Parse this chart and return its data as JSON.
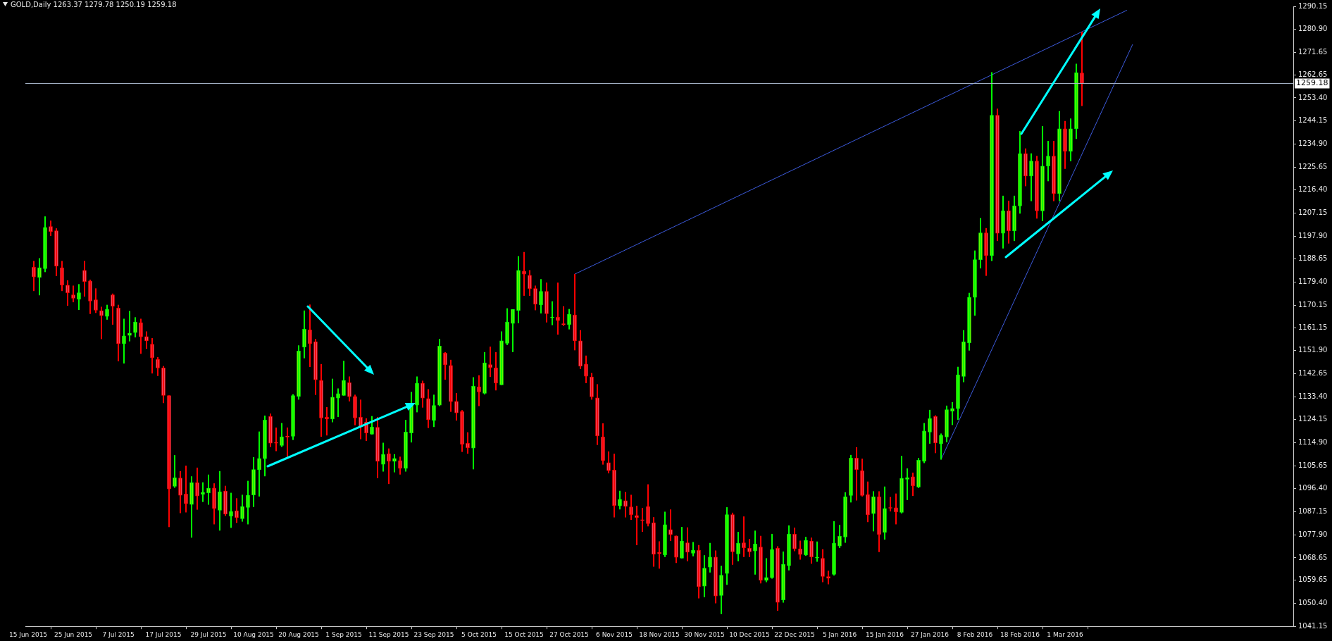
{
  "chart_data": {
    "type": "candlestick",
    "title": "GOLD,Daily 1263.37 1279.78 1250.19 1259.18",
    "categories": [
      "15 Jun 2015",
      null,
      null,
      null,
      null,
      null,
      null,
      null,
      "25 Jun 2015",
      null,
      null,
      null,
      null,
      null,
      null,
      null,
      "7 Jul 2015",
      null,
      null,
      null,
      null,
      null,
      null,
      null,
      "17 Jul 2015",
      null,
      null,
      null,
      null,
      null,
      null,
      null,
      "29 Jul 2015",
      null,
      null,
      null,
      null,
      null,
      null,
      null,
      "10 Aug 2015",
      null,
      null,
      null,
      null,
      null,
      null,
      null,
      "20 Aug 2015",
      null,
      null,
      null,
      null,
      null,
      null,
      null,
      "1 Sep 2015",
      null,
      null,
      null,
      null,
      null,
      null,
      null,
      "11 Sep 2015",
      null,
      null,
      null,
      null,
      null,
      null,
      null,
      "23 Sep 2015",
      null,
      null,
      null,
      null,
      null,
      null,
      null,
      "5 Oct 2015",
      null,
      null,
      null,
      null,
      null,
      null,
      null,
      "15 Oct 2015",
      null,
      null,
      null,
      null,
      null,
      null,
      null,
      "27 Oct 2015",
      null,
      null,
      null,
      null,
      null,
      null,
      null,
      "6 Nov 2015",
      null,
      null,
      null,
      null,
      null,
      null,
      null,
      "18 Nov 2015",
      null,
      null,
      null,
      null,
      null,
      null,
      null,
      "30 Nov 2015",
      null,
      null,
      null,
      null,
      null,
      null,
      null,
      "10 Dec 2015",
      null,
      null,
      null,
      null,
      null,
      null,
      null,
      "22 Dec 2015",
      null,
      null,
      null,
      null,
      null,
      null,
      null,
      "5 Jan 2016",
      null,
      null,
      null,
      null,
      null,
      null,
      null,
      "15 Jan 2016",
      null,
      null,
      null,
      null,
      null,
      null,
      null,
      "27 Jan 2016",
      null,
      null,
      null,
      null,
      null,
      null,
      null,
      "8 Feb 2016",
      null,
      null,
      null,
      null,
      null,
      null,
      null,
      "18 Feb 2016",
      null,
      null,
      null,
      null,
      null,
      null,
      null,
      "1 Mar 2016",
      null,
      null,
      null,
      null,
      null,
      null,
      null,
      null,
      null,
      null,
      null,
      null,
      null,
      null,
      null,
      null,
      null,
      null,
      null,
      null,
      null,
      null,
      null,
      null,
      null,
      null,
      null,
      null,
      null,
      null,
      null,
      null,
      null,
      null,
      null,
      null,
      null,
      null,
      null,
      null
    ],
    "ohlc": [
      null,
      [
        1185.4,
        1187.8,
        1175.9,
        1181.5
      ],
      [
        1181.3,
        1188.9,
        1174.2,
        1185.2
      ],
      [
        1184.8,
        1205.7,
        1183.5,
        1201.4
      ],
      [
        1201.7,
        1204.0,
        1198.0,
        1199.7
      ],
      [
        1200.0,
        1200.9,
        1181.9,
        1185.8
      ],
      [
        1185.2,
        1187.8,
        1175.9,
        1178.2
      ],
      [
        1178.2,
        1180.0,
        1170.0,
        1175.1
      ],
      [
        1174.3,
        1177.9,
        1171.4,
        1172.9
      ],
      [
        1172.5,
        1178.5,
        1168.3,
        1175.1
      ],
      [
        1184.1,
        1187.8,
        1173.7,
        1179.6
      ],
      [
        1179.9,
        1180.3,
        1166.7,
        1171.8
      ],
      [
        1172.3,
        1176.8,
        1167.1,
        1168.1
      ],
      [
        1167.9,
        1169.4,
        1156.6,
        1165.9
      ],
      [
        1165.6,
        1170.2,
        1164.4,
        1168.4
      ],
      [
        1174.3,
        1174.7,
        1162.4,
        1169.7
      ],
      [
        1169.0,
        1170.2,
        1147.7,
        1154.7
      ],
      [
        1154.7,
        1164.6,
        1146.8,
        1157.8
      ],
      [
        1158.0,
        1167.7,
        1155.7,
        1158.9
      ],
      [
        1159.1,
        1165.2,
        1157.3,
        1163.4
      ],
      [
        1163.1,
        1164.6,
        1150.7,
        1157.4
      ],
      [
        1157.5,
        1159.5,
        1152.7,
        1155.8
      ],
      [
        1154.5,
        1156.8,
        1142.8,
        1149.0
      ],
      [
        1148.3,
        1149.2,
        1141.8,
        1144.9
      ],
      [
        1144.9,
        1145.6,
        1130.9,
        1133.9
      ],
      [
        1133.8,
        1133.8,
        1081.1,
        1096.3
      ],
      [
        1097.4,
        1109.8,
        1096.9,
        1100.8
      ],
      [
        1100.7,
        1103.4,
        1086.7,
        1093.8
      ],
      [
        1094.3,
        1105.6,
        1087.0,
        1090.4
      ],
      [
        1090.1,
        1101.3,
        1076.9,
        1098.8
      ],
      [
        1098.8,
        1104.8,
        1088.1,
        1093.5
      ],
      [
        1094.2,
        1098.9,
        1091.2,
        1095.0
      ],
      [
        1094.8,
        1102.0,
        1090.1,
        1096.6
      ],
      [
        1096.7,
        1098.5,
        1082.2,
        1088.5
      ],
      [
        1087.8,
        1103.4,
        1079.7,
        1095.2
      ],
      [
        1095.5,
        1097.5,
        1085.6,
        1086.2
      ],
      [
        1085.4,
        1094.7,
        1080.8,
        1087.3
      ],
      [
        1087.6,
        1092.5,
        1082.8,
        1084.8
      ],
      [
        1084.4,
        1093.9,
        1083.3,
        1089.3
      ],
      [
        1088.9,
        1099.5,
        1082.2,
        1093.8
      ],
      [
        1093.9,
        1109.0,
        1089.2,
        1104.1
      ],
      [
        1104.0,
        1119.3,
        1093.4,
        1108.6
      ],
      [
        1108.5,
        1125.7,
        1101.5,
        1124.0
      ],
      [
        1125.4,
        1126.5,
        1113.3,
        1114.7
      ],
      [
        1114.9,
        1120.9,
        1111.6,
        1114.7
      ],
      [
        1113.8,
        1122.7,
        1113.3,
        1117.3
      ],
      [
        1117.3,
        1120.9,
        1109.3,
        1117.2
      ],
      [
        1117.5,
        1134.3,
        1116.1,
        1133.8
      ],
      [
        1133.5,
        1153.9,
        1132.3,
        1151.7
      ],
      [
        1153.3,
        1167.9,
        1148.9,
        1160.5
      ],
      [
        1160.2,
        1170.3,
        1145.4,
        1154.7
      ],
      [
        1155.5,
        1156.5,
        1134.2,
        1140.2
      ],
      [
        1139.9,
        1146.4,
        1117.4,
        1124.8
      ],
      [
        1125.1,
        1129.1,
        1117.9,
        1124.5
      ],
      [
        1124.4,
        1140.5,
        1123.2,
        1133.2
      ],
      [
        1132.8,
        1136.6,
        1125.3,
        1134.6
      ],
      [
        1133.9,
        1147.7,
        1133.9,
        1139.9
      ],
      [
        1139.0,
        1141.4,
        1131.6,
        1133.4
      ],
      [
        1133.5,
        1134.1,
        1122.0,
        1124.8
      ],
      [
        1125.1,
        1132.1,
        1116.4,
        1121.5
      ],
      [
        1123.2,
        1124.6,
        1115.7,
        1118.8
      ],
      [
        1118.3,
        1125.5,
        1118.3,
        1121.2
      ],
      [
        1121.1,
        1125.1,
        1100.8,
        1107.4
      ],
      [
        1106.2,
        1114.8,
        1103.4,
        1110.2
      ],
      [
        1110.5,
        1112.5,
        1098.4,
        1107.4
      ],
      [
        1107.4,
        1110.2,
        1103.1,
        1108.6
      ],
      [
        1107.7,
        1109.2,
        1102.2,
        1104.6
      ],
      [
        1104.6,
        1124.0,
        1103.4,
        1119.2
      ],
      [
        1118.8,
        1135.2,
        1115.1,
        1130.7
      ],
      [
        1130.0,
        1141.4,
        1127.2,
        1138.8
      ],
      [
        1138.8,
        1139.7,
        1129.1,
        1132.8
      ],
      [
        1132.6,
        1136.3,
        1120.9,
        1124.1
      ],
      [
        1123.9,
        1134.1,
        1121.3,
        1129.9
      ],
      [
        1130.0,
        1156.5,
        1129.7,
        1153.7
      ],
      [
        1150.9,
        1151.2,
        1140.3,
        1146.2
      ],
      [
        1145.9,
        1148.1,
        1127.4,
        1131.4
      ],
      [
        1131.5,
        1134.7,
        1123.9,
        1126.9
      ],
      [
        1127.4,
        1127.9,
        1111.3,
        1114.3
      ],
      [
        1114.7,
        1119.0,
        1110.6,
        1112.9
      ],
      [
        1112.7,
        1141.1,
        1104.3,
        1137.6
      ],
      [
        1137.4,
        1141.9,
        1129.7,
        1135.3
      ],
      [
        1134.7,
        1151.2,
        1134.4,
        1147.0
      ],
      [
        1146.3,
        1153.4,
        1141.4,
        1145.1
      ],
      [
        1144.9,
        1151.2,
        1136.0,
        1138.8
      ],
      [
        1138.1,
        1159.5,
        1138.1,
        1155.8
      ],
      [
        1154.8,
        1168.8,
        1154.2,
        1163.4
      ],
      [
        1162.8,
        1168.4,
        1151.4,
        1168.4
      ],
      [
        1168.0,
        1189.7,
        1163.0,
        1184.1
      ],
      [
        1183.8,
        1191.4,
        1174.0,
        1182.6
      ],
      [
        1182.1,
        1184.1,
        1174.0,
        1176.8
      ],
      [
        1176.8,
        1177.9,
        1168.2,
        1170.5
      ],
      [
        1170.3,
        1180.5,
        1166.9,
        1175.7
      ],
      [
        1175.7,
        1179.1,
        1163.3,
        1166.7
      ],
      [
        1165.1,
        1171.6,
        1162.2,
        1165.3
      ],
      [
        1165.3,
        1179.1,
        1158.4,
        1163.9
      ],
      [
        1162.7,
        1169.6,
        1161.9,
        1162.4
      ],
      [
        1162.4,
        1168.5,
        1160.5,
        1166.5
      ],
      [
        1166.2,
        1182.6,
        1152.1,
        1155.8
      ],
      [
        1155.8,
        1160.0,
        1144.6,
        1145.6
      ],
      [
        1146.5,
        1149.8,
        1138.9,
        1141.6
      ],
      [
        1141.3,
        1142.8,
        1132.3,
        1133.3
      ],
      [
        1132.9,
        1138.3,
        1114.1,
        1117.6
      ],
      [
        1117.2,
        1122.6,
        1106.2,
        1107.7
      ],
      [
        1106.9,
        1111.3,
        1102.7,
        1103.7
      ],
      [
        1103.9,
        1110.4,
        1085.0,
        1089.7
      ],
      [
        1089.5,
        1095.5,
        1088.2,
        1092.2
      ],
      [
        1091.6,
        1095.0,
        1085.0,
        1089.3
      ],
      [
        1089.1,
        1093.9,
        1084.0,
        1086.0
      ],
      [
        1085.7,
        1089.5,
        1073.8,
        1084.9
      ],
      [
        1083.8,
        1088.6,
        1079.2,
        1083.7
      ],
      [
        1089.3,
        1098.1,
        1081.4,
        1082.4
      ],
      [
        1082.8,
        1084.9,
        1065.2,
        1070.1
      ],
      [
        1070.9,
        1075.2,
        1064.4,
        1070.3
      ],
      [
        1069.9,
        1087.1,
        1069.1,
        1082.0
      ],
      [
        1080.0,
        1088.0,
        1075.5,
        1078.0
      ],
      [
        1077.5,
        1077.5,
        1066.7,
        1068.9
      ],
      [
        1068.5,
        1081.0,
        1068.5,
        1075.4
      ],
      [
        1074.7,
        1080.8,
        1067.4,
        1070.9
      ],
      [
        1070.5,
        1074.9,
        1069.4,
        1071.7
      ],
      [
        1071.7,
        1073.7,
        1052.5,
        1057.1
      ],
      [
        1057.3,
        1069.6,
        1053.0,
        1064.5
      ],
      [
        1064.9,
        1074.6,
        1062.9,
        1069.0
      ],
      [
        1069.0,
        1071.5,
        1050.5,
        1053.3
      ],
      [
        1053.5,
        1065.4,
        1046.2,
        1061.7
      ],
      [
        1062.4,
        1088.9,
        1057.9,
        1086.0
      ],
      [
        1086.0,
        1086.7,
        1066.0,
        1071.1
      ],
      [
        1070.2,
        1079.0,
        1067.4,
        1074.5
      ],
      [
        1074.7,
        1085.2,
        1069.1,
        1072.7
      ],
      [
        1072.5,
        1076.1,
        1069.1,
        1071.1
      ],
      [
        1071.4,
        1079.5,
        1062.0,
        1074.2
      ],
      [
        1073.0,
        1077.4,
        1058.5,
        1059.7
      ],
      [
        1059.6,
        1068.4,
        1059.0,
        1060.8
      ],
      [
        1060.7,
        1078.2,
        1060.4,
        1072.0
      ],
      [
        1072.5,
        1073.2,
        1047.5,
        1050.8
      ],
      [
        1051.8,
        1071.1,
        1050.8,
        1066.1
      ],
      [
        1065.5,
        1081.6,
        1063.7,
        1078.2
      ],
      [
        1078.2,
        1080.7,
        1071.4,
        1072.3
      ],
      [
        1072.3,
        1075.5,
        1068.0,
        1070.0
      ],
      [
        1069.9,
        1077.0,
        1069.6,
        1075.7
      ],
      [
        1075.4,
        1076.7,
        1066.4,
        1069.0
      ],
      [
        1068.6,
        1075.1,
        1067.2,
        1068.9
      ],
      [
        1068.5,
        1072.0,
        1059.0,
        1061.2
      ],
      [
        1061.1,
        1063.4,
        1058.1,
        1060.5
      ],
      [
        1062.0,
        1083.3,
        1061.7,
        1074.5
      ],
      [
        1073.4,
        1081.8,
        1072.7,
        1077.3
      ],
      [
        1077.0,
        1094.9,
        1074.8,
        1093.2
      ],
      [
        1093.7,
        1109.9,
        1091.0,
        1108.7
      ],
      [
        1108.7,
        1113.0,
        1091.8,
        1104.1
      ],
      [
        1103.6,
        1108.4,
        1093.4,
        1093.7
      ],
      [
        1094.1,
        1099.2,
        1083.1,
        1085.9
      ],
      [
        1086.4,
        1095.3,
        1079.4,
        1093.2
      ],
      [
        1093.2,
        1095.3,
        1071.1,
        1078.1
      ],
      [
        1078.9,
        1097.2,
        1076.1,
        1088.5
      ],
      [
        1088.8,
        1093.0,
        1087.4,
        1088.6
      ],
      [
        1088.8,
        1094.4,
        1082.2,
        1087.1
      ],
      [
        1086.9,
        1109.5,
        1086.6,
        1100.6
      ],
      [
        1100.2,
        1104.5,
        1092.0,
        1100.9
      ],
      [
        1101.2,
        1102.8,
        1093.6,
        1097.6
      ],
      [
        1097.1,
        1108.7,
        1096.8,
        1107.9
      ],
      [
        1107.4,
        1122.7,
        1106.8,
        1119.6
      ],
      [
        1119.2,
        1128.0,
        1114.6,
        1124.6
      ],
      [
        1125.4,
        1125.8,
        1110.8,
        1114.8
      ],
      [
        1114.4,
        1118.5,
        1108.2,
        1117.9
      ],
      [
        1117.2,
        1129.7,
        1115.2,
        1128.2
      ],
      [
        1127.6,
        1131.1,
        1122.1,
        1128.7
      ],
      [
        1128.6,
        1145.3,
        1124.2,
        1142.2
      ],
      [
        1141.5,
        1160.0,
        1139.3,
        1155.4
      ],
      [
        1155.0,
        1175.0,
        1152.0,
        1173.3
      ],
      [
        1173.3,
        1192.0,
        1166.0,
        1188.4
      ],
      [
        1188.4,
        1205.0,
        1185.0,
        1199.2
      ],
      [
        1199.2,
        1201.0,
        1182.0,
        1190.0
      ],
      [
        1190.0,
        1263.6,
        1188.0,
        1246.4
      ],
      [
        1246.4,
        1249.0,
        1196.0,
        1199.0
      ],
      [
        1199.0,
        1214.0,
        1193.0,
        1208.0
      ],
      [
        1208.0,
        1212.0,
        1195.0,
        1200.0
      ],
      [
        1200.0,
        1214.0,
        1196.0,
        1210.0
      ],
      [
        1210.0,
        1240.0,
        1207.0,
        1231.0
      ],
      [
        1231.0,
        1233.0,
        1218.0,
        1222.0
      ],
      [
        1222.0,
        1231.0,
        1212.0,
        1228.0
      ],
      [
        1228.0,
        1230.0,
        1205.0,
        1208.0
      ],
      [
        1208.0,
        1242.0,
        1204.0,
        1226.0
      ],
      [
        1226.0,
        1236.0,
        1220.0,
        1230.0
      ],
      [
        1230.0,
        1236.0,
        1212.0,
        1215.0
      ],
      [
        1215.0,
        1248.0,
        1212.0,
        1241.0
      ],
      [
        1241.0,
        1244.0,
        1225.0,
        1232.0
      ],
      [
        1232.0,
        1245.0,
        1228.0,
        1241.0
      ],
      [
        1241.0,
        1267.0,
        1237.0,
        1263.5
      ],
      [
        1263.37,
        1279.78,
        1250.19,
        1259.18
      ],
      null,
      null,
      null,
      null,
      null,
      null,
      null,
      null,
      null,
      null,
      null,
      null,
      null,
      null,
      null,
      null,
      null,
      null,
      null,
      null,
      null,
      null,
      null,
      null,
      null,
      null,
      null,
      null,
      null,
      null,
      null,
      null,
      null,
      null,
      null,
      null,
      null
    ],
    "series": [
      {
        "type": "line",
        "color": "#3c5adc",
        "values": [
          null,
          null,
          null,
          null,
          null,
          null,
          null,
          null,
          null,
          null,
          null,
          null,
          null,
          null,
          null,
          null,
          null,
          null,
          null,
          null,
          null,
          null,
          null,
          null,
          null,
          null,
          null,
          null,
          null,
          null,
          null,
          null,
          null,
          null,
          null,
          null,
          null,
          null,
          null,
          null,
          null,
          null,
          null,
          null,
          null,
          null,
          null,
          null,
          null,
          null,
          null,
          null,
          null,
          null,
          null,
          null,
          null,
          null,
          null,
          null,
          null,
          null,
          null,
          null,
          null,
          null,
          null,
          null,
          null,
          null,
          null,
          null,
          null,
          null,
          null,
          null,
          null,
          null,
          null,
          null,
          null,
          null,
          null,
          null,
          null,
          null,
          null,
          null,
          null,
          null,
          null,
          null,
          null,
          null,
          null,
          null,
          null,
          1182.6,
          null,
          null,
          null,
          null,
          null,
          null,
          null,
          null,
          null,
          null,
          null,
          null,
          null,
          null,
          null,
          null,
          null,
          null,
          null,
          null,
          null,
          null,
          null,
          null,
          null,
          null,
          null,
          null,
          null,
          null,
          null,
          null,
          null,
          null,
          null,
          null,
          null,
          null,
          null,
          null,
          null,
          null,
          null,
          null,
          null,
          null,
          null,
          null,
          null,
          null,
          null,
          null,
          null,
          null,
          null,
          null,
          null,
          null,
          null,
          null,
          null,
          null,
          null,
          null,
          null,
          null,
          null,
          null,
          null,
          null,
          null,
          null,
          null,
          null,
          null,
          null,
          null,
          null,
          null,
          null,
          null,
          null,
          null,
          null,
          null,
          null,
          null,
          null,
          null,
          null,
          null,
          null,
          null,
          null,
          null,
          null,
          null,
          1288.6,
          null,
          null,
          null,
          null,
          null,
          null,
          null,
          null,
          null,
          null,
          null,
          null,
          null,
          null,
          null,
          null,
          null,
          null,
          null,
          null,
          null,
          null,
          null,
          null,
          null,
          null,
          null,
          null,
          null
        ]
      },
      {
        "type": "line",
        "color": "#3c5adc",
        "values": [
          null,
          null,
          null,
          null,
          null,
          null,
          null,
          null,
          null,
          null,
          null,
          null,
          null,
          null,
          null,
          null,
          null,
          null,
          null,
          null,
          null,
          null,
          null,
          null,
          null,
          null,
          null,
          null,
          null,
          null,
          null,
          null,
          null,
          null,
          null,
          null,
          null,
          null,
          null,
          null,
          null,
          null,
          null,
          null,
          null,
          null,
          null,
          null,
          null,
          null,
          null,
          null,
          null,
          null,
          null,
          null,
          null,
          null,
          null,
          null,
          null,
          null,
          null,
          null,
          null,
          null,
          null,
          null,
          null,
          null,
          null,
          null,
          null,
          null,
          null,
          null,
          null,
          null,
          null,
          null,
          null,
          null,
          null,
          null,
          null,
          null,
          null,
          null,
          null,
          null,
          null,
          null,
          null,
          null,
          null,
          null,
          null,
          null,
          null,
          null,
          null,
          null,
          null,
          null,
          null,
          null,
          null,
          null,
          null,
          null,
          null,
          null,
          null,
          null,
          null,
          null,
          null,
          null,
          null,
          null,
          null,
          null,
          null,
          null,
          null,
          null,
          null,
          null,
          null,
          null,
          null,
          null,
          null,
          null,
          null,
          null,
          null,
          null,
          null,
          null,
          null,
          null,
          null,
          null,
          null,
          null,
          null,
          null,
          null,
          null,
          null,
          null,
          null,
          null,
          null,
          null,
          null,
          null,
          null,
          null,
          null,
          null,
          1108.2,
          null,
          null,
          null,
          null,
          null,
          null,
          null,
          null,
          null,
          null,
          null,
          null,
          null,
          null,
          null,
          null,
          null,
          null,
          null,
          null,
          null,
          null,
          null,
          null,
          null,
          null,
          null,
          null,
          null,
          null,
          null,
          null,
          null,
          1274.9,
          null,
          null,
          null,
          null,
          null,
          null,
          null,
          null,
          null,
          null,
          null,
          null,
          null,
          null,
          null,
          null,
          null,
          null,
          null,
          null,
          null,
          null,
          null,
          null,
          null,
          null,
          null,
          null
        ]
      }
    ],
    "ylim": [
      1041.15,
      1290.15
    ],
    "yticks": [
      1041.15,
      {
        "value": 1050.4,
        "label": "1050.40"
      },
      1059.65,
      1068.65,
      {
        "value": 1077.9,
        "label": "1077.90"
      },
      1087.15,
      {
        "value": 1096.4,
        "label": "1096.40"
      },
      1105.65,
      {
        "value": 1114.9,
        "label": "1114.90"
      },
      1124.15,
      {
        "value": 1133.4,
        "label": "1133.40"
      },
      1142.65,
      {
        "value": 1151.9,
        "label": "1151.90"
      },
      1161.15,
      1170.15,
      {
        "value": 1179.4,
        "label": "1179.40"
      },
      1188.65,
      {
        "value": 1197.9,
        "label": "1197.90"
      },
      1207.15,
      {
        "value": 1216.4,
        "label": "1216.40"
      },
      1225.65,
      {
        "value": 1234.9,
        "label": "1234.90"
      },
      1244.15,
      {
        "value": 1253.4,
        "label": "1253.40"
      },
      1262.65,
      1271.65,
      {
        "value": 1280.9,
        "label": "1280.90"
      },
      1290.15
    ],
    "ref_lines": [
      {
        "axis": "y",
        "value": 1259.18,
        "label": "1259.18",
        "color": "#a6b4c8"
      }
    ]
  }
}
